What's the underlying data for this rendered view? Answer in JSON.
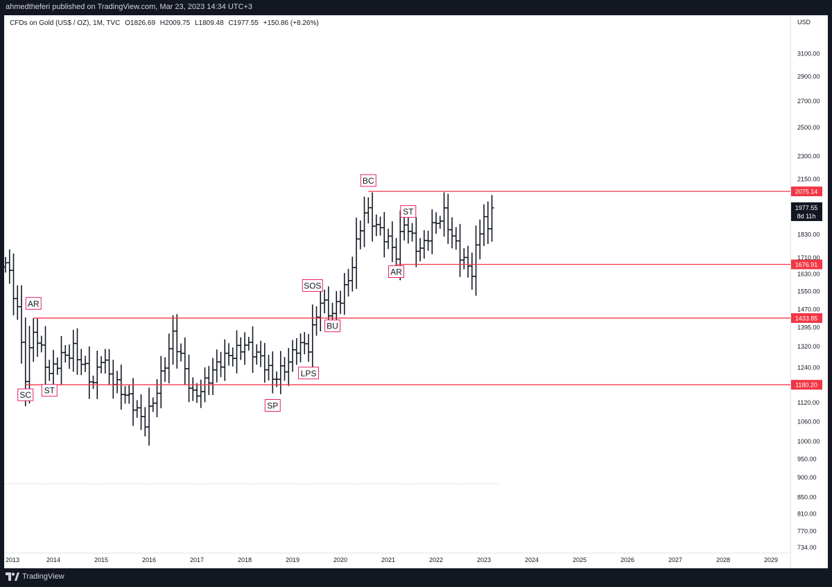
{
  "header": {
    "published_text": "ahmedtheferi published on TradingView.com, Mar 23, 2023 14:34 UTC+3"
  },
  "legend": {
    "symbol": "CFDs on Gold (US$ / OZ), 1M, TVC",
    "open": "O1826.69",
    "high": "H2009.75",
    "low": "L1809.48",
    "close": "C1977.55",
    "change": "+150.86 (+8.26%)"
  },
  "price_axis": {
    "currency": "USD",
    "labels": [
      "3100.00",
      "2900.00",
      "2700.00",
      "2500.00",
      "2300.00",
      "2150.00",
      "2075.14",
      "1977.55",
      "8d 11h",
      "1830.00",
      "1710.00",
      "1676.91",
      "1630.00",
      "1550.00",
      "1470.00",
      "1433.85",
      "1395.00",
      "1320.00",
      "1240.00",
      "1180.20",
      "1120.00",
      "1060.00",
      "1000.00",
      "950.00",
      "900.00",
      "850.00",
      "810.00",
      "770.00",
      "734.00"
    ]
  },
  "time_axis": {
    "labels": [
      "2013",
      "2014",
      "2015",
      "2016",
      "2017",
      "2018",
      "2019",
      "2020",
      "2021",
      "2022",
      "2023",
      "2024",
      "2025",
      "2026",
      "2027",
      "2028",
      "2029"
    ]
  },
  "footer": {
    "brand": "TradingView"
  },
  "colors": {
    "background": "#ffffff",
    "bars": "#131722",
    "levels": "#f23645",
    "label_border": "#e91e63",
    "current_price_bg": "#131722"
  },
  "chart_data": {
    "type": "ohlc-bar",
    "title": "CFDs on Gold (US$ / OZ), 1M, TVC",
    "ylabel": "USD",
    "y_scale": "log",
    "ylim": [
      734,
      3200
    ],
    "xlim": [
      "2013-01",
      "2029-06"
    ],
    "levels": [
      {
        "label": "2075.14",
        "value": 2075.14,
        "from": "2020-08",
        "color": "#f23645"
      },
      {
        "label": "1676.91",
        "value": 1676.91,
        "from": "2021-03",
        "color": "#f23645"
      },
      {
        "label": "1433.85",
        "value": 1433.85,
        "from": "2013-08",
        "color": "#f23645"
      },
      {
        "label": "1180.20",
        "value": 1180.2,
        "from": "2013-06",
        "color": "#f23645"
      }
    ],
    "last_price": {
      "value": 1977.55,
      "label": "1977.55",
      "countdown": "8d 11h"
    },
    "annotations": [
      {
        "text": "AR",
        "date": "2013-08",
        "price": 1495,
        "placement": "above"
      },
      {
        "text": "SC",
        "date": "2013-06",
        "price": 1145,
        "placement": "below"
      },
      {
        "text": "ST",
        "date": "2013-12",
        "price": 1160,
        "placement": "below"
      },
      {
        "text": "SP",
        "date": "2018-08",
        "price": 1110,
        "placement": "below"
      },
      {
        "text": "LPS",
        "date": "2019-05",
        "price": 1220,
        "placement": "below"
      },
      {
        "text": "SOS",
        "date": "2019-06",
        "price": 1575,
        "placement": "above"
      },
      {
        "text": "BU",
        "date": "2019-11",
        "price": 1400,
        "placement": "below"
      },
      {
        "text": "BC",
        "date": "2020-08",
        "price": 2140,
        "placement": "above"
      },
      {
        "text": "ST",
        "date": "2021-06",
        "price": 1955,
        "placement": "above"
      },
      {
        "text": "AR",
        "date": "2021-03",
        "price": 1640,
        "placement": "below"
      }
    ],
    "yearly_closes": [
      {
        "year": 2013,
        "close": 1202
      },
      {
        "year": 2014,
        "close": 1184
      },
      {
        "year": 2015,
        "close": 1061
      },
      {
        "year": 2016,
        "close": 1151
      },
      {
        "year": 2017,
        "close": 1303
      },
      {
        "year": 2018,
        "close": 1282
      },
      {
        "year": 2019,
        "close": 1517
      },
      {
        "year": 2020,
        "close": 1898
      },
      {
        "year": 2021,
        "close": 1829
      },
      {
        "year": 2022,
        "close": 1824
      },
      {
        "year": 2023,
        "close": 1977.55
      }
    ],
    "monthly_close_path": [
      {
        "date": "2013-01",
        "close": 1665
      },
      {
        "date": "2013-02",
        "close": 1610
      },
      {
        "date": "2013-04",
        "close": 1470
      },
      {
        "date": "2013-06",
        "close": 1225
      },
      {
        "date": "2013-08",
        "close": 1395
      },
      {
        "date": "2013-12",
        "close": 1202
      },
      {
        "date": "2014-03",
        "close": 1285
      },
      {
        "date": "2014-06",
        "close": 1322
      },
      {
        "date": "2014-11",
        "close": 1167
      },
      {
        "date": "2015-01",
        "close": 1280
      },
      {
        "date": "2015-11",
        "close": 1062
      },
      {
        "date": "2015-12",
        "close": 1061
      },
      {
        "date": "2016-07",
        "close": 1350
      },
      {
        "date": "2016-12",
        "close": 1151
      },
      {
        "date": "2017-09",
        "close": 1280
      },
      {
        "date": "2018-01",
        "close": 1345
      },
      {
        "date": "2018-08",
        "close": 1200
      },
      {
        "date": "2019-02",
        "close": 1315
      },
      {
        "date": "2019-05",
        "close": 1305
      },
      {
        "date": "2019-08",
        "close": 1520
      },
      {
        "date": "2019-11",
        "close": 1464
      },
      {
        "date": "2020-03",
        "close": 1577
      },
      {
        "date": "2020-07",
        "close": 1975
      },
      {
        "date": "2020-08",
        "close": 1968
      },
      {
        "date": "2021-03",
        "close": 1708
      },
      {
        "date": "2021-05",
        "close": 1907
      },
      {
        "date": "2021-09",
        "close": 1757
      },
      {
        "date": "2022-03",
        "close": 1937
      },
      {
        "date": "2022-09",
        "close": 1660
      },
      {
        "date": "2022-10",
        "close": 1633
      },
      {
        "date": "2023-01",
        "close": 1928
      },
      {
        "date": "2023-02",
        "close": 1826
      },
      {
        "date": "2023-03",
        "close": 1977.55
      }
    ]
  }
}
